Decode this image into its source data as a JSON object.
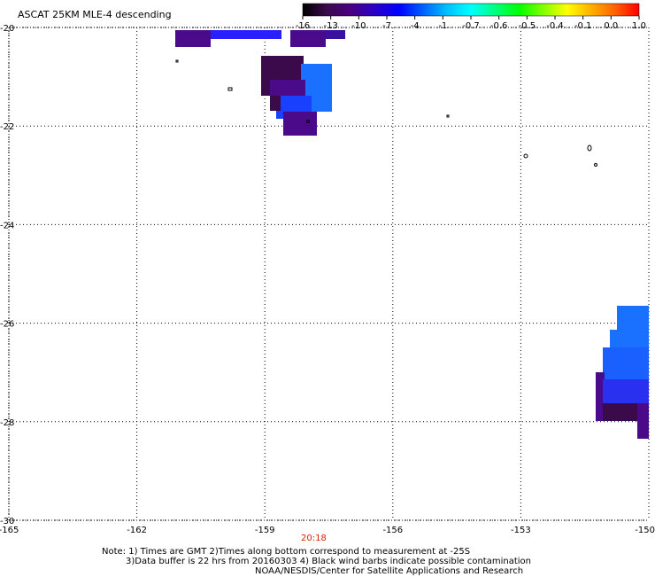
{
  "title": "ASCAT 25KM MLE-4 descending",
  "colorbar": {
    "labels": [
      "-16",
      "-13",
      "-10",
      "-7",
      "-4",
      "-1",
      "-0.7",
      "-0.6",
      "-0.5",
      "-0.4",
      "-0.1",
      "0.0",
      "1.0"
    ],
    "colors": [
      "#000000",
      "#3a0a4a",
      "#4b0082",
      "#2a00c8",
      "#0000ff",
      "#0060ff",
      "#00c0ff",
      "#00ffff",
      "#00ff80",
      "#00ff00",
      "#80ff00",
      "#ffff00",
      "#ffb000",
      "#ff6000",
      "#ff0000"
    ]
  },
  "axes": {
    "x_ticks": [
      "-165",
      "-162",
      "-159",
      "-156",
      "-153",
      "-150"
    ],
    "y_ticks": [
      "-20",
      "-22",
      "-24",
      "-26",
      "-28",
      "-30"
    ],
    "x_range": [
      -165,
      -150
    ],
    "y_range": [
      -30,
      -20
    ],
    "grid": "dotted"
  },
  "time_label": "20:18",
  "time_color": "#e02000",
  "notes": [
    "Note: 1) Times are GMT 2)Times along bottom correspond to measurement at -25S",
    "3)Data buffer is 22 hrs from 20160303 4) Black wind barbs indicate possible contamination",
    "NOAA/NESDIS/Center for Satellite Applications and Research"
  ],
  "data_colors": {
    "dark": "#3a0a4a",
    "purple": "#4b0a8a",
    "violet": "#5a10b0",
    "indigo": "#2a10c8",
    "blue": "#1a40ff",
    "lightblue": "#1a70ff"
  }
}
